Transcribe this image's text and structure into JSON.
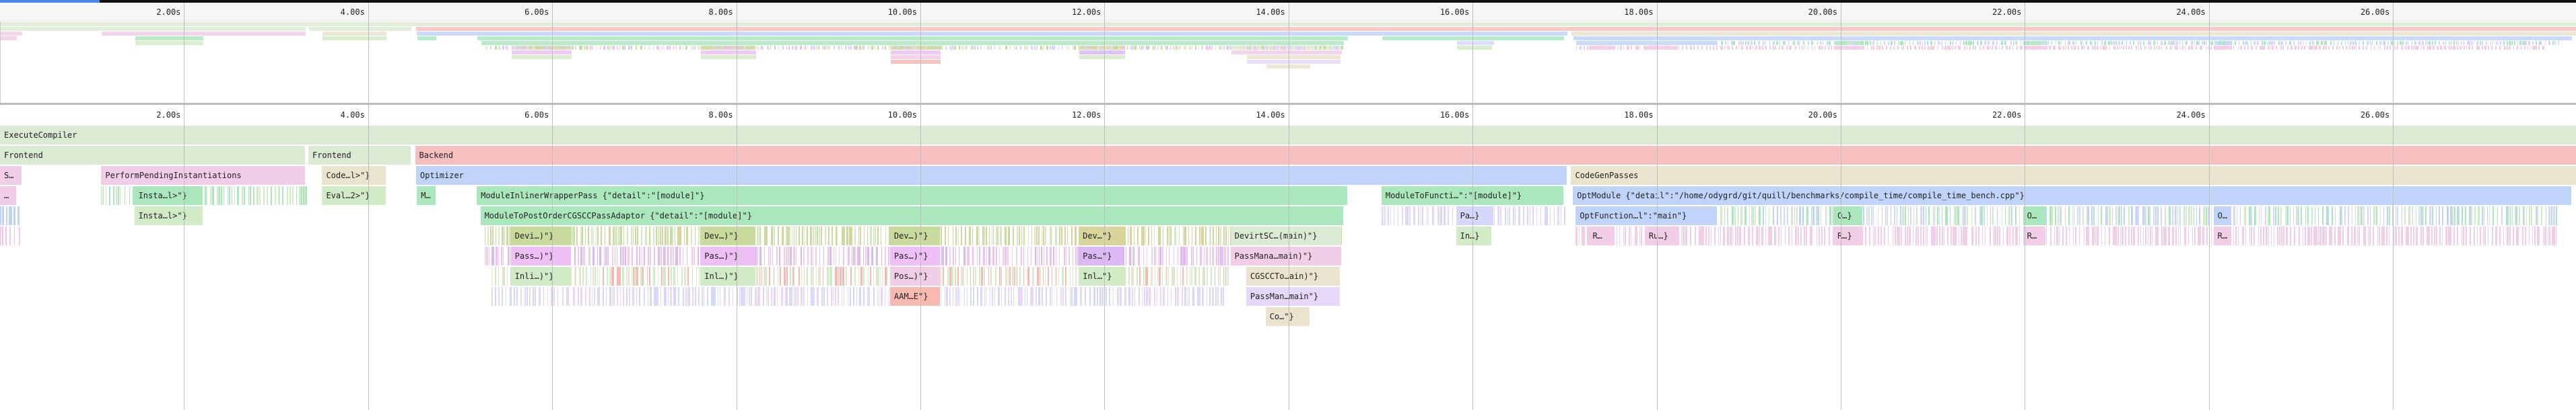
{
  "ruler": {
    "ticks": [
      "2.00s",
      "4.00s",
      "6.00s",
      "8.00s",
      "10.00s",
      "12.00s",
      "14.00s",
      "16.00s",
      "18.00s",
      "20.00s",
      "22.00s",
      "24.00s",
      "26.00s"
    ],
    "tick_values": [
      2,
      4,
      6,
      8,
      10,
      12,
      14,
      16,
      18,
      20,
      22,
      24,
      26
    ]
  },
  "colors": {
    "execute": "#dbebd3",
    "backend": "#f7c0c0",
    "optimizer": "#c0d4f9",
    "codegen": "#eae4cf",
    "inliner": "#abe7bd",
    "perform": "#f2cde7",
    "devirt": "#c9db9c",
    "devirt2": "#d8d49c",
    "pass": "#eec0f5",
    "pass2": "#dab9f5",
    "inline": "#d2ebc7",
    "aam": "#f7b9b0",
    "passman": "#e6d8f8",
    "lightblue": "#d6d8fb",
    "accent": "#4a86e8"
  },
  "slices": [
    {
      "label": "ExecuteCompiler",
      "row": 0,
      "start": 0,
      "end": 28.0,
      "color": "execute"
    },
    {
      "label": "Frontend",
      "row": 1,
      "start": 0,
      "end": 3.33,
      "color": "execute"
    },
    {
      "label": "Frontend",
      "row": 1,
      "start": 3.35,
      "end": 4.48,
      "color": "execute"
    },
    {
      "label": "Backend",
      "row": 1,
      "start": 4.51,
      "end": 28.0,
      "color": "backend"
    },
    {
      "label": "S…",
      "row": 2,
      "start": 0,
      "end": 0.25,
      "color": "perform"
    },
    {
      "label": "…",
      "row": 3,
      "start": 0,
      "end": 0.19,
      "color": "perform"
    },
    {
      "label": "PerformPendingInstantiations",
      "row": 2,
      "start": 1.1,
      "end": 3.33,
      "color": "perform"
    },
    {
      "label": "Insta…l>\"}",
      "row": 3,
      "start": 1.46,
      "end": 2.22,
      "color": "inliner"
    },
    {
      "label": "Insta…l>\"}",
      "row": 4,
      "start": 1.46,
      "end": 2.22,
      "color": "inline"
    },
    {
      "label": "Code…l>\"}",
      "row": 2,
      "start": 3.5,
      "end": 4.21,
      "color": "codegen"
    },
    {
      "label": "Eval…2>\"}",
      "row": 3,
      "start": 3.5,
      "end": 4.21,
      "color": "inline"
    },
    {
      "label": "Optimizer",
      "row": 2,
      "start": 4.52,
      "end": 17.04,
      "color": "optimizer"
    },
    {
      "label": "CodeGenPasses",
      "row": 2,
      "start": 17.07,
      "end": 28.0,
      "color": "codegen"
    },
    {
      "label": "M…",
      "row": 3,
      "start": 4.53,
      "end": 4.75,
      "color": "inliner"
    },
    {
      "label": "ModuleInlinerWrapperPass {\"detail\":\"[module]\"}",
      "row": 3,
      "start": 5.18,
      "end": 14.65,
      "color": "inliner"
    },
    {
      "label": "ModuleToPostOrderCGSCCPassAdaptor {\"detail\":\"[module]\"}",
      "row": 4,
      "start": 5.22,
      "end": 14.61,
      "color": "inliner"
    },
    {
      "label": "ModuleToFuncti…\":\"[module]\"}",
      "row": 3,
      "start": 15.01,
      "end": 17.0,
      "color": "inliner"
    },
    {
      "label": "OptModule {\"detail\":\"/home/odygrd/git/quill/benchmarks/compile_time/compile_time_bench.cpp\"}",
      "row": 3,
      "start": 17.09,
      "end": 27.95,
      "color": "optimizer"
    },
    {
      "label": "OptFunction…l\":\"main\"}",
      "row": 4,
      "start": 17.12,
      "end": 18.67,
      "color": "optimizer"
    },
    {
      "label": "Devi…)\"}",
      "row": 5,
      "start": 5.55,
      "end": 6.22,
      "color": "devirt"
    },
    {
      "label": "Dev…)\"}",
      "row": 5,
      "start": 7.61,
      "end": 8.22,
      "color": "devirt"
    },
    {
      "label": "Dev…)\"}",
      "row": 5,
      "start": 9.67,
      "end": 10.23,
      "color": "devirt"
    },
    {
      "label": "Dev…\"}",
      "row": 5,
      "start": 11.72,
      "end": 12.23,
      "color": "devirt2"
    },
    {
      "label": "DevirtSC…(main)\"}",
      "row": 5,
      "start": 13.37,
      "end": 14.59,
      "color": "execute"
    },
    {
      "label": "Pass…)\"}",
      "row": 6,
      "start": 5.55,
      "end": 6.22,
      "color": "pass"
    },
    {
      "label": "Pas…)\"}",
      "row": 6,
      "start": 7.61,
      "end": 8.22,
      "color": "pass"
    },
    {
      "label": "Pas…)\"}",
      "row": 6,
      "start": 9.67,
      "end": 10.23,
      "color": "pass"
    },
    {
      "label": "Pas…\"}",
      "row": 6,
      "start": 11.72,
      "end": 12.23,
      "color": "pass2"
    },
    {
      "label": "PassMana…main)\"}",
      "row": 6,
      "start": 13.37,
      "end": 14.59,
      "color": "perform"
    },
    {
      "label": "Inli…)\"}",
      "row": 7,
      "start": 5.55,
      "end": 6.22,
      "color": "inline"
    },
    {
      "label": "Inl…)\"}",
      "row": 7,
      "start": 7.61,
      "end": 8.22,
      "color": "inline"
    },
    {
      "label": "Pos…)\"}",
      "row": 7,
      "start": 9.67,
      "end": 10.23,
      "color": "perform"
    },
    {
      "label": "Inl…\"}",
      "row": 7,
      "start": 11.72,
      "end": 12.23,
      "color": "inline"
    },
    {
      "label": "CGSCCTo…ain)\"}",
      "row": 7,
      "start": 13.54,
      "end": 14.57,
      "color": "codegen"
    },
    {
      "label": "AAM…E\"}",
      "row": 8,
      "start": 9.67,
      "end": 10.23,
      "color": "aam"
    },
    {
      "label": "PassMan…main\"}",
      "row": 8,
      "start": 13.54,
      "end": 14.57,
      "color": "passman"
    },
    {
      "label": "Co…\"}",
      "row": 9,
      "start": 13.75,
      "end": 14.24,
      "color": "codegen"
    },
    {
      "label": "Pa…}",
      "row": 4,
      "start": 15.82,
      "end": 16.24,
      "color": "lightblue"
    },
    {
      "label": "In…}",
      "row": 5,
      "start": 15.82,
      "end": 16.22,
      "color": "inline"
    },
    {
      "label": "O…}",
      "row": 4,
      "start": 19.92,
      "end": 20.25,
      "color": "inliner"
    },
    {
      "label": "O…",
      "row": 4,
      "start": 21.98,
      "end": 22.24,
      "color": "inliner"
    },
    {
      "label": "O…",
      "row": 4,
      "start": 24.05,
      "end": 24.26,
      "color": "optimizer"
    },
    {
      "label": "R…",
      "row": 5,
      "start": 17.26,
      "end": 17.56,
      "color": "perform"
    },
    {
      "label": "Ru…}",
      "row": 5,
      "start": 17.87,
      "end": 18.24,
      "color": "perform"
    },
    {
      "label": "R…}",
      "row": 5,
      "start": 19.92,
      "end": 20.25,
      "color": "perform"
    },
    {
      "label": "R…",
      "row": 5,
      "start": 21.98,
      "end": 22.24,
      "color": "perform"
    },
    {
      "label": "R…",
      "row": 5,
      "start": 24.05,
      "end": 24.26,
      "color": "perform"
    }
  ]
}
